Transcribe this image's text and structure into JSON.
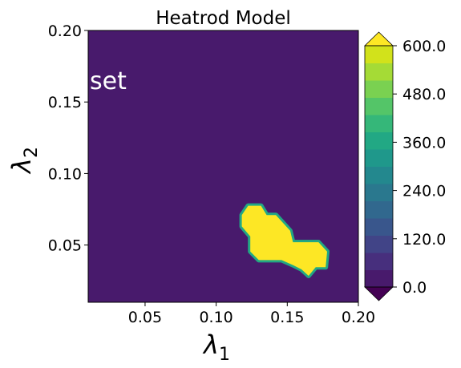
{
  "chart_data": {
    "type": "heatmap",
    "title": "Heatrod Model",
    "xlabel": "λ",
    "xlabel_sub": "1",
    "ylabel": "λ",
    "ylabel_sub": "2",
    "xlim": [
      0.01,
      0.2
    ],
    "ylim": [
      0.01,
      0.2
    ],
    "xticks": [
      0.05,
      0.1,
      0.15,
      0.2
    ],
    "xtick_labels": [
      "0.05",
      "0.10",
      "0.15",
      "0.20"
    ],
    "yticks": [
      0.05,
      0.1,
      0.15,
      0.2
    ],
    "ytick_labels": [
      "0.05",
      "0.10",
      "0.15",
      "0.20"
    ],
    "annotation": "set",
    "background_value": 0.0,
    "region": {
      "level_value": 600.0,
      "outline": [
        [
          0.1225,
          0.0775
        ],
        [
          0.1315,
          0.0775
        ],
        [
          0.1355,
          0.071
        ],
        [
          0.142,
          0.071
        ],
        [
          0.152,
          0.06
        ],
        [
          0.154,
          0.052
        ],
        [
          0.172,
          0.052
        ],
        [
          0.178,
          0.0455
        ],
        [
          0.177,
          0.0345
        ],
        [
          0.17,
          0.0345
        ],
        [
          0.165,
          0.0285
        ],
        [
          0.16,
          0.033
        ],
        [
          0.154,
          0.036
        ],
        [
          0.146,
          0.0395
        ],
        [
          0.13,
          0.0395
        ],
        [
          0.124,
          0.0455
        ],
        [
          0.124,
          0.056
        ],
        [
          0.118,
          0.063
        ],
        [
          0.118,
          0.071
        ]
      ],
      "edge_value": 390.0
    },
    "colorbar": {
      "levels": [
        0,
        60,
        120,
        180,
        240,
        300,
        360,
        420,
        480,
        540,
        600
      ],
      "colors": [
        "#481a6c",
        "#472f7d",
        "#414487",
        "#39568c",
        "#31688e",
        "#2a788e",
        "#23888e",
        "#1f988b",
        "#22a884",
        "#35b779",
        "#54c568",
        "#7ad151",
        "#a5db36",
        "#d2e21b"
      ],
      "under_color": "#440154",
      "over_color": "#fde725",
      "tick_values": [
        0,
        120,
        240,
        360,
        480,
        600
      ],
      "tick_labels": [
        "0.0",
        "120.0",
        "240.0",
        "360.0",
        "480.0",
        "600.0"
      ],
      "extend": "both"
    },
    "colors": {
      "background": "#481a6c",
      "region_fill": "#fde725",
      "region_edge": "#22a884",
      "annotation": "#ffffff"
    }
  }
}
